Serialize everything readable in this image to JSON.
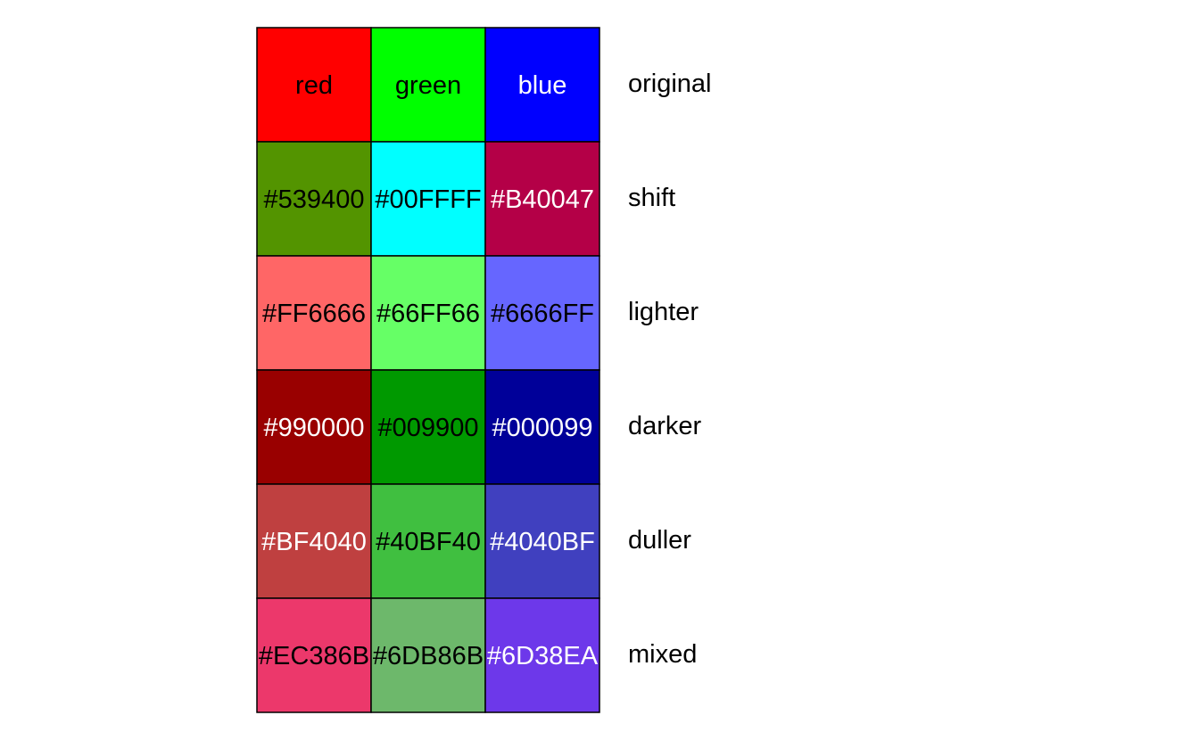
{
  "rows": [
    {
      "label": "original",
      "cells": [
        {
          "text": "red",
          "fill": "#FF0000",
          "ink": "#000000"
        },
        {
          "text": "green",
          "fill": "#00FF00",
          "ink": "#000000"
        },
        {
          "text": "blue",
          "fill": "#0000FF",
          "ink": "#FFFFFF"
        }
      ]
    },
    {
      "label": "shift",
      "cells": [
        {
          "text": "#539400",
          "fill": "#539400",
          "ink": "#000000"
        },
        {
          "text": "#00FFFF",
          "fill": "#00FFFF",
          "ink": "#000000"
        },
        {
          "text": "#B40047",
          "fill": "#B40047",
          "ink": "#FFFFFF"
        }
      ]
    },
    {
      "label": "lighter",
      "cells": [
        {
          "text": "#FF6666",
          "fill": "#FF6666",
          "ink": "#000000"
        },
        {
          "text": "#66FF66",
          "fill": "#66FF66",
          "ink": "#000000"
        },
        {
          "text": "#6666FF",
          "fill": "#6666FF",
          "ink": "#000000"
        }
      ]
    },
    {
      "label": "darker",
      "cells": [
        {
          "text": "#990000",
          "fill": "#990000",
          "ink": "#FFFFFF"
        },
        {
          "text": "#009900",
          "fill": "#009900",
          "ink": "#000000"
        },
        {
          "text": "#000099",
          "fill": "#000099",
          "ink": "#FFFFFF"
        }
      ]
    },
    {
      "label": "duller",
      "cells": [
        {
          "text": "#BF4040",
          "fill": "#BF4040",
          "ink": "#FFFFFF"
        },
        {
          "text": "#40BF40",
          "fill": "#40BF40",
          "ink": "#000000"
        },
        {
          "text": "#4040BF",
          "fill": "#4040BF",
          "ink": "#FFFFFF"
        }
      ]
    },
    {
      "label": "mixed",
      "cells": [
        {
          "text": "#EC386B",
          "fill": "#EC386B",
          "ink": "#000000"
        },
        {
          "text": "#6DB86B",
          "fill": "#6DB86B",
          "ink": "#000000"
        },
        {
          "text": "#6D38EA",
          "fill": "#6D38EA",
          "ink": "#FFFFFF"
        }
      ]
    }
  ]
}
